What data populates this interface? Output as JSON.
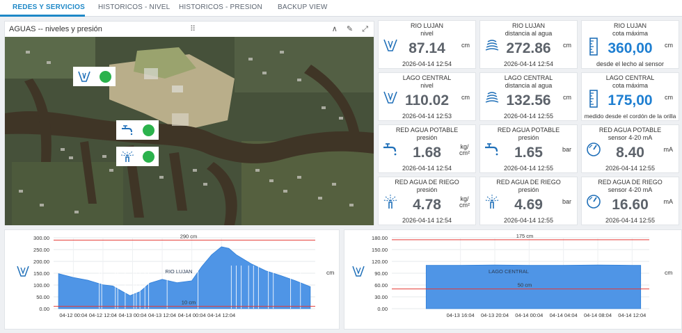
{
  "tabs": [
    {
      "label": "REDES Y SERVICIOS",
      "active": true
    },
    {
      "label": "HISTORICOS - NIVEL",
      "active": false
    },
    {
      "label": "HISTORICOS - PRESION",
      "active": false
    },
    {
      "label": "BACKUP VIEW",
      "active": false
    }
  ],
  "map_card": {
    "title": "AGUAS -- niveles y presión",
    "drag_glyph": "⠿",
    "collapse_glyph": "∧",
    "edit_glyph": "✎",
    "expand_glyph": "⤢"
  },
  "tiles": [
    {
      "title": "RIO LUJAN",
      "subtitle": "nivel",
      "value": "87.14",
      "unit": "cm",
      "timestamp": "2026-04-14 12:54",
      "icon": "water-level-icon"
    },
    {
      "title": "RIO LUJAN",
      "subtitle": "distancia al agua",
      "value": "272.86",
      "unit": "cm",
      "timestamp": "2026-04-14 12:54",
      "icon": "ultrasonic-sensor-icon"
    },
    {
      "title": "RIO LUJAN",
      "subtitle": "cota máxima",
      "value": "360,00",
      "unit": "cm",
      "timestamp": "desde el lecho al sensor",
      "icon": "ruler-icon",
      "highlight": true
    },
    {
      "title": "LAGO CENTRAL",
      "subtitle": "nivel",
      "value": "110.02",
      "unit": "cm",
      "timestamp": "2026-04-14 12:53",
      "icon": "water-level-icon"
    },
    {
      "title": "LAGO CENTRAL",
      "subtitle": "distancia al agua",
      "value": "132.56",
      "unit": "cm",
      "timestamp": "2026-04-14 12:55",
      "icon": "ultrasonic-sensor-icon"
    },
    {
      "title": "LAGO CENTRAL",
      "subtitle": "cota máxima",
      "value": "175,00",
      "unit": "cm",
      "timestamp": "medido desde el cordón de la orilla",
      "icon": "ruler-icon",
      "highlight": true
    },
    {
      "title": "RED AGUA POTABLE",
      "subtitle": "presión",
      "value": "1.68",
      "unit_top": "kg/",
      "unit_bottom": "cm²",
      "timestamp": "2026-04-14 12:54",
      "icon": "faucet-icon"
    },
    {
      "title": "RED AGUA POTABLE",
      "subtitle": "presión",
      "value": "1.65",
      "unit": "bar",
      "timestamp": "2026-04-14 12:55",
      "icon": "faucet-icon"
    },
    {
      "title": "RED AGUA POTABLE",
      "subtitle": "sensor 4-20 mA",
      "value": "8.40",
      "unit": "mA",
      "timestamp": "2026-04-14 12:55",
      "icon": "gauge-icon"
    },
    {
      "title": "RED AGUA DE RIEGO",
      "subtitle": "presión",
      "value": "4.78",
      "unit_top": "kg/",
      "unit_bottom": "cm²",
      "timestamp": "2026-04-14 12:54",
      "icon": "sprinkler-icon"
    },
    {
      "title": "RED AGUA DE RIEGO",
      "subtitle": "presión",
      "value": "4.69",
      "unit": "bar",
      "timestamp": "2026-04-14 12:55",
      "icon": "sprinkler-icon"
    },
    {
      "title": "RED AGUA DE RIEGO",
      "subtitle": "sensor 4-20 mA",
      "value": "16.60",
      "unit": "mA",
      "timestamp": "2026-04-14 12:55",
      "icon": "gauge-icon"
    }
  ],
  "chart_data": [
    {
      "type": "area",
      "series_label": "RIO LUJAN",
      "unit_label": "cm",
      "ylim": [
        0,
        300
      ],
      "yticks": [
        "0.00",
        "50.00",
        "100.00",
        "150.00",
        "200.00",
        "250.00",
        "300.00"
      ],
      "xticks": [
        "04-12 00:04",
        "04-12 12:04",
        "04-13 00:04",
        "04-13 12:04",
        "04-14 00:04",
        "04-14 12:04"
      ],
      "x_hours": [
        -6,
        0,
        6,
        12,
        16,
        19,
        23,
        27,
        31,
        36,
        42,
        48,
        52,
        56,
        60,
        63,
        66,
        72,
        78,
        84,
        90,
        96
      ],
      "values": [
        148,
        132,
        120,
        101,
        96,
        78,
        55,
        72,
        108,
        124,
        110,
        118,
        178,
        228,
        262,
        255,
        228,
        190,
        160,
        140,
        118,
        93
      ],
      "thresholds": [
        {
          "label": "290 cm",
          "value": 290,
          "color": "#e53935"
        },
        {
          "label": "10 cm",
          "value": 10,
          "color": "#e53935"
        }
      ]
    },
    {
      "type": "area",
      "series_label": "LAGO CENTRAL",
      "unit_label": "cm",
      "ylim": [
        0,
        180
      ],
      "yticks": [
        "0.00",
        "30.00",
        "60.00",
        "90.00",
        "120.00",
        "150.00",
        "180.00"
      ],
      "xticks": [
        "04-13 16:04",
        "04-13 20:04",
        "04-14 00:04",
        "04-14 04:04",
        "04-14 08:04",
        "04-14 12:04"
      ],
      "x_hours": [
        -4,
        0,
        4,
        8,
        12,
        16,
        20,
        21
      ],
      "values": [
        110,
        110,
        111,
        110,
        110,
        111,
        110,
        110
      ],
      "thresholds": [
        {
          "label": "175 cm",
          "value": 175,
          "color": "#e53935"
        },
        {
          "label": "50 cm",
          "value": 50,
          "color": "#e53935"
        }
      ]
    }
  ]
}
